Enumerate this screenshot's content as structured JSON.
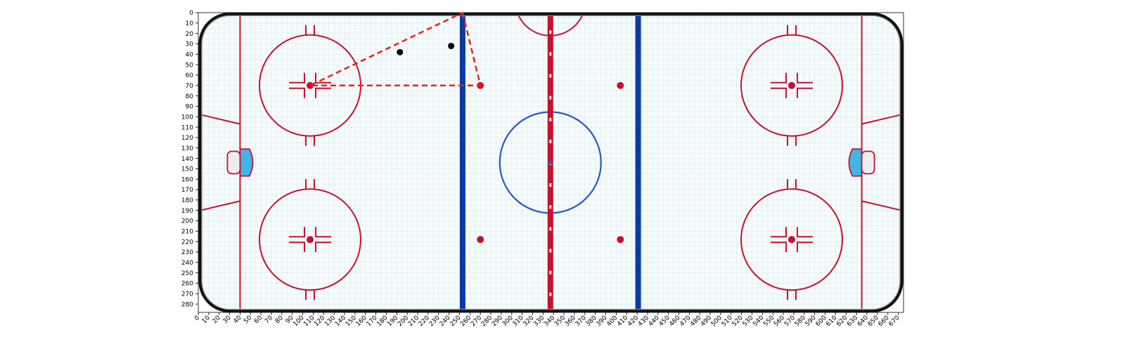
{
  "chart_data": {
    "type": "scatter",
    "title": "",
    "xlabel": "",
    "ylabel": "",
    "xlim": [
      0,
      675
    ],
    "ylim": [
      0,
      288
    ],
    "y_inverted": true,
    "grid": true,
    "x_ticks": [
      0,
      10,
      20,
      30,
      40,
      50,
      60,
      70,
      80,
      90,
      100,
      110,
      120,
      130,
      140,
      150,
      160,
      170,
      180,
      190,
      200,
      210,
      220,
      230,
      240,
      250,
      260,
      270,
      280,
      290,
      300,
      310,
      320,
      330,
      340,
      350,
      360,
      370,
      380,
      390,
      400,
      410,
      420,
      430,
      440,
      450,
      460,
      470,
      480,
      490,
      500,
      510,
      520,
      530,
      540,
      550,
      560,
      570,
      580,
      590,
      600,
      610,
      620,
      630,
      640,
      650,
      660,
      670
    ],
    "y_ticks": [
      0,
      10,
      20,
      30,
      40,
      50,
      60,
      70,
      80,
      90,
      100,
      110,
      120,
      130,
      140,
      150,
      160,
      170,
      180,
      190,
      200,
      210,
      220,
      230,
      240,
      250,
      260,
      270,
      280
    ],
    "points": [
      {
        "x": 193,
        "y": 38,
        "color": "#000000"
      },
      {
        "x": 242,
        "y": 32,
        "color": "#000000"
      }
    ],
    "dashed_path": {
      "color": "#e8231f",
      "points": [
        [
          253,
          0
        ],
        [
          270,
          70
        ],
        [
          107,
          70
        ],
        [
          253,
          0
        ]
      ]
    },
    "rink": {
      "board_color": "#111111",
      "red_line_color": "#c8102e",
      "blue_line_color": "#0b3aa3",
      "center_circle_color": "#2b55c3",
      "crease_color": "#41b6e6",
      "ice_grid_color": "#d6ecf0",
      "goal_lines_x": [
        40,
        635
      ],
      "blue_lines_x": [
        253,
        421
      ],
      "center_line_x": 337,
      "faceoff_circles": [
        {
          "x": 107,
          "y": 70
        },
        {
          "x": 107,
          "y": 218
        },
        {
          "x": 568,
          "y": 70
        },
        {
          "x": 568,
          "y": 218
        }
      ],
      "neutral_dots": [
        {
          "x": 270,
          "y": 70
        },
        {
          "x": 270,
          "y": 218
        },
        {
          "x": 404,
          "y": 70
        },
        {
          "x": 404,
          "y": 218
        }
      ],
      "center_circle": {
        "x": 337,
        "y": 144
      }
    }
  }
}
